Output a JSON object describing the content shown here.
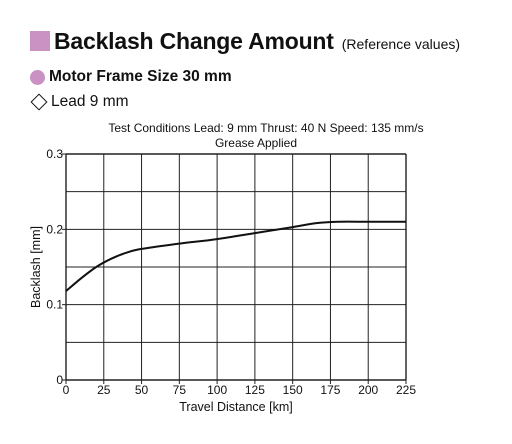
{
  "heading": {
    "title": "Backlash Change Amount",
    "subtitle": "(Reference values)",
    "accent_color": "#c992c3"
  },
  "frame_size_label": "Motor Frame Size 30 mm",
  "lead_label": "Lead 9 mm",
  "test_conditions": {
    "line1": "Test Conditions  Lead: 9 mm  Thrust: 40 N  Speed: 135 mm/s",
    "line2": "Grease Applied"
  },
  "chart_data": {
    "type": "line",
    "xlabel": "Travel Distance [km]",
    "ylabel": "Backlash [mm]",
    "xlim": [
      0,
      225
    ],
    "ylim": [
      0,
      0.3
    ],
    "x_ticks": [
      "0",
      "25",
      "50",
      "75",
      "100",
      "125",
      "150",
      "175",
      "200",
      "225"
    ],
    "y_ticks": [
      "0",
      "0.1",
      "0.2",
      "0.3"
    ],
    "grid": true,
    "series": [
      {
        "x": [
          0,
          10,
          20,
          30,
          40,
          50,
          75,
          100,
          125,
          150,
          165,
          180,
          200,
          225
        ],
        "y": [
          0.118,
          0.135,
          0.15,
          0.161,
          0.169,
          0.174,
          0.181,
          0.187,
          0.195,
          0.203,
          0.208,
          0.21,
          0.21,
          0.21
        ]
      }
    ]
  }
}
